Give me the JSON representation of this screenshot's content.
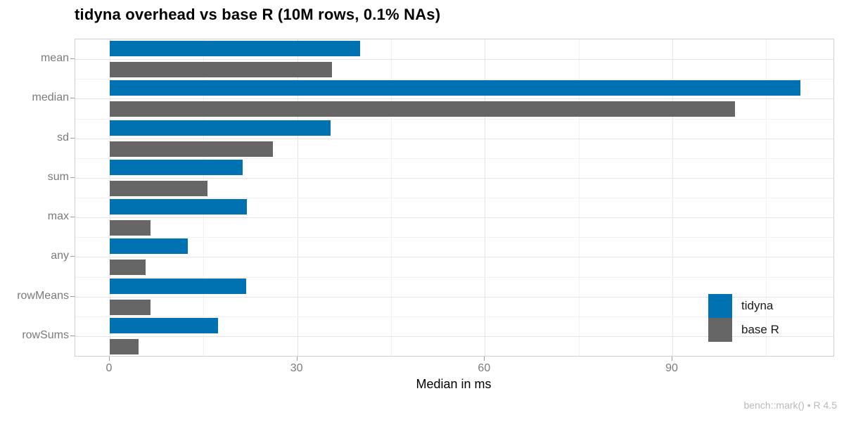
{
  "chart_data": {
    "type": "bar",
    "orientation": "horizontal",
    "title": "tidyna overhead vs base R (10M rows, 0.1% NAs)",
    "xlabel": "Median in ms",
    "ylabel": "",
    "categories": [
      "mean",
      "median",
      "sd",
      "sum",
      "max",
      "any",
      "rowMeans",
      "rowSums"
    ],
    "series": [
      {
        "name": "tidyna",
        "color": "#0072B2",
        "values": [
          40.0,
          110.5,
          35.3,
          21.3,
          21.9,
          12.5,
          21.8,
          17.3
        ]
      },
      {
        "name": "base R",
        "color": "#666666",
        "values": [
          35.6,
          100.0,
          26.1,
          15.6,
          6.5,
          5.7,
          6.5,
          4.6
        ]
      }
    ],
    "x_ticks": [
      0,
      30,
      60,
      90
    ],
    "x_minor_ticks": [
      15,
      45,
      75,
      105
    ],
    "xlim": [
      -5.5,
      115.75
    ],
    "grid": "on",
    "legend_position": "inside-right"
  },
  "caption": "bench::mark() • R 4.5"
}
